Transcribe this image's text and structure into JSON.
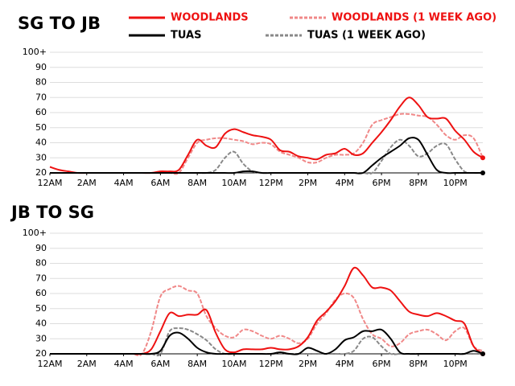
{
  "chart_data": [
    {
      "type": "line",
      "title": "SG TO JB",
      "x": [
        0,
        0.5,
        1,
        1.5,
        2,
        2.5,
        3,
        3.5,
        4,
        4.5,
        5,
        5.5,
        6,
        6.5,
        7,
        7.5,
        8,
        8.5,
        9,
        9.5,
        10,
        10.5,
        11,
        11.5,
        12,
        12.5,
        13,
        13.5,
        14,
        14.5,
        15,
        15.5,
        16,
        16.5,
        17,
        17.5,
        18,
        18.5,
        19,
        19.5,
        20,
        20.5,
        21,
        21.5,
        22,
        22.5,
        23,
        23.5
      ],
      "xlim": [
        0,
        23.5
      ],
      "xticks": [
        {
          "value": 0,
          "label": "12AM"
        },
        {
          "value": 2,
          "label": "2AM"
        },
        {
          "value": 4,
          "label": "4AM"
        },
        {
          "value": 6,
          "label": "6AM"
        },
        {
          "value": 8,
          "label": "8AM"
        },
        {
          "value": 10,
          "label": "10AM"
        },
        {
          "value": 12,
          "label": "12PM"
        },
        {
          "value": 14,
          "label": "2PM"
        },
        {
          "value": 16,
          "label": "4PM"
        },
        {
          "value": 18,
          "label": "6PM"
        },
        {
          "value": 20,
          "label": "8PM"
        },
        {
          "value": 22,
          "label": "10PM"
        }
      ],
      "ylim": [
        20,
        100
      ],
      "yticks": [
        20,
        30,
        40,
        50,
        60,
        70,
        80,
        90,
        {
          "value": 100,
          "label": "100+"
        }
      ],
      "grid": true,
      "series": [
        {
          "name": "WOODLANDS",
          "color": "#ee1111",
          "dashed": false,
          "end_dot": true,
          "values": [
            24,
            22,
            21,
            20,
            20,
            20,
            20,
            20,
            20,
            20,
            20,
            20,
            21,
            21,
            22,
            32,
            42,
            38,
            37,
            46,
            49,
            47,
            45,
            44,
            42,
            35,
            34,
            31,
            30,
            29,
            32,
            33,
            36,
            32,
            33,
            40,
            47,
            55,
            64,
            70,
            65,
            57,
            56,
            56,
            48,
            42,
            34,
            30
          ]
        },
        {
          "name": "WOODLANDS (1 WEEK AGO)",
          "color": "#f08888",
          "dashed": true,
          "end_dot": false,
          "values": [
            20,
            20,
            20,
            20,
            20,
            20,
            20,
            20,
            20,
            20,
            20,
            20,
            20,
            20,
            20,
            30,
            40,
            42,
            43,
            43,
            42,
            41,
            39,
            40,
            39,
            34,
            32,
            30,
            27,
            27,
            30,
            32,
            32,
            33,
            40,
            52,
            55,
            57,
            59,
            59,
            58,
            57,
            52,
            45,
            42,
            45,
            43,
            30
          ]
        },
        {
          "name": "TUAS",
          "color": "#000000",
          "dashed": false,
          "end_dot": true,
          "values": [
            20,
            20,
            20,
            20,
            20,
            20,
            20,
            20,
            20,
            20,
            20,
            20,
            20,
            20,
            20,
            20,
            20,
            20,
            20,
            20,
            20,
            21,
            21,
            20,
            20,
            20,
            20,
            20,
            20,
            20,
            20,
            20,
            20,
            20,
            20,
            25,
            30,
            34,
            38,
            43,
            42,
            32,
            22,
            20,
            20,
            20,
            20,
            20
          ]
        },
        {
          "name": "TUAS (1 WEEK AGO)",
          "color": "#888888",
          "dashed": true,
          "end_dot": false,
          "values": [
            20,
            20,
            20,
            20,
            20,
            20,
            20,
            20,
            20,
            20,
            20,
            20,
            20,
            20,
            20,
            20,
            20,
            20,
            22,
            30,
            34,
            26,
            21,
            20,
            20,
            20,
            20,
            20,
            20,
            20,
            20,
            20,
            20,
            20,
            20,
            20,
            28,
            37,
            42,
            38,
            31,
            33,
            38,
            39,
            29,
            21,
            20,
            20
          ]
        }
      ]
    },
    {
      "type": "line",
      "title": "JB TO SG",
      "x": [
        0,
        0.5,
        1,
        1.5,
        2,
        2.5,
        3,
        3.5,
        4,
        4.5,
        5,
        5.5,
        6,
        6.5,
        7,
        7.5,
        8,
        8.5,
        9,
        9.5,
        10,
        10.5,
        11,
        11.5,
        12,
        12.5,
        13,
        13.5,
        14,
        14.5,
        15,
        15.5,
        16,
        16.5,
        17,
        17.5,
        18,
        18.5,
        19,
        19.5,
        20,
        20.5,
        21,
        21.5,
        22,
        22.5,
        23,
        23.5
      ],
      "xlim": [
        0,
        23.5
      ],
      "xticks": [
        {
          "value": 0,
          "label": "12AM"
        },
        {
          "value": 2,
          "label": "2AM"
        },
        {
          "value": 4,
          "label": "4AM"
        },
        {
          "value": 6,
          "label": "6AM"
        },
        {
          "value": 8,
          "label": "8AM"
        },
        {
          "value": 10,
          "label": "10AM"
        },
        {
          "value": 12,
          "label": "12PM"
        },
        {
          "value": 14,
          "label": "2PM"
        },
        {
          "value": 16,
          "label": "4PM"
        },
        {
          "value": 18,
          "label": "6PM"
        },
        {
          "value": 20,
          "label": "8PM"
        },
        {
          "value": 22,
          "label": "10PM"
        }
      ],
      "ylim": [
        20,
        100
      ],
      "yticks": [
        20,
        30,
        40,
        50,
        60,
        70,
        80,
        90,
        {
          "value": 100,
          "label": "100+"
        }
      ],
      "grid": true,
      "series": [
        {
          "color": "#ee1111",
          "dashed": false,
          "end_dot": true,
          "values": [
            20,
            20,
            20,
            20,
            20,
            20,
            20,
            20,
            20,
            20,
            20,
            23,
            35,
            47,
            45,
            46,
            46,
            49,
            34,
            23,
            21,
            23,
            23,
            23,
            24,
            23,
            23,
            25,
            31,
            42,
            48,
            55,
            65,
            77,
            72,
            64,
            64,
            62,
            55,
            48,
            46,
            45,
            47,
            45,
            42,
            40,
            25,
            20
          ]
        },
        {
          "color": "#f08888",
          "dashed": true,
          "end_dot": false,
          "values": [
            20,
            20,
            20,
            20,
            20,
            20,
            20,
            20,
            20,
            20,
            20,
            35,
            58,
            63,
            65,
            62,
            60,
            45,
            37,
            32,
            31,
            36,
            35,
            32,
            30,
            32,
            30,
            27,
            30,
            40,
            47,
            56,
            60,
            57,
            43,
            33,
            30,
            25,
            27,
            33,
            35,
            36,
            33,
            29,
            35,
            37,
            25,
            22
          ]
        },
        {
          "color": "#000000",
          "dashed": false,
          "end_dot": true,
          "values": [
            20,
            20,
            20,
            20,
            20,
            20,
            20,
            20,
            20,
            20,
            20,
            20,
            22,
            32,
            34,
            30,
            24,
            21,
            20,
            20,
            20,
            20,
            20,
            20,
            20,
            21,
            20,
            20,
            24,
            22,
            20,
            23,
            29,
            31,
            35,
            35,
            36,
            30,
            21,
            20,
            20,
            20,
            20,
            20,
            20,
            20,
            22,
            20
          ]
        },
        {
          "color": "#888888",
          "dashed": true,
          "end_dot": false,
          "values": [
            20,
            20,
            20,
            20,
            20,
            20,
            20,
            20,
            20,
            20,
            20,
            20,
            20,
            35,
            37,
            36,
            33,
            29,
            23,
            20,
            20,
            20,
            20,
            20,
            20,
            20,
            20,
            20,
            20,
            20,
            20,
            20,
            20,
            22,
            30,
            31,
            25,
            20,
            20,
            20,
            20,
            20,
            20,
            20,
            20,
            20,
            20,
            20
          ]
        }
      ]
    }
  ]
}
